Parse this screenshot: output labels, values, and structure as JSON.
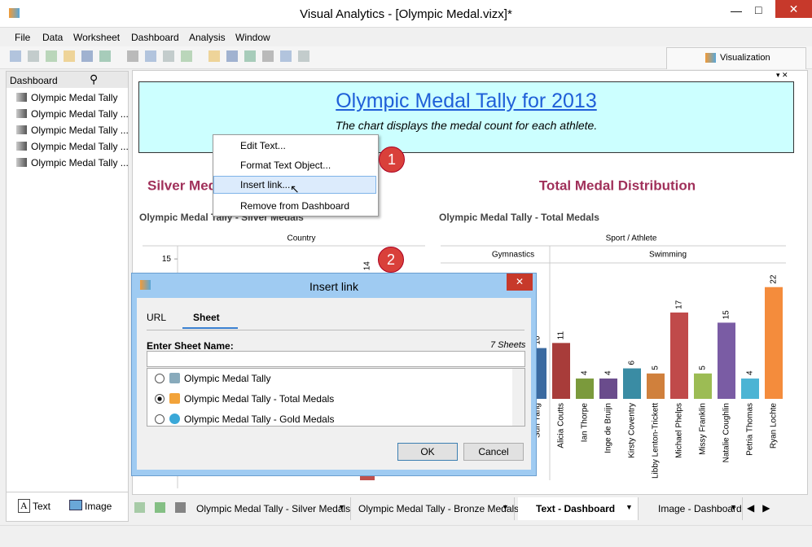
{
  "window": {
    "title": "Visual Analytics - [Olympic Medal.vizx]*"
  },
  "menu": [
    "File",
    "Data",
    "Worksheet",
    "Dashboard",
    "Analysis",
    "Window"
  ],
  "toolbar": {
    "tab": "Visualization"
  },
  "sidebar": {
    "title": "Dashboard",
    "items": [
      "Olympic Medal Tally",
      "Olympic Medal Tally ...",
      "Olympic Medal Tally ...",
      "Olympic Medal Tally ...",
      "Olympic Medal Tally ..."
    ],
    "objects": [
      "Text",
      "Image"
    ]
  },
  "dashboard": {
    "title": "Olympic Medal Tally for 2013",
    "subtitle": "The chart displays the medal count for each athlete."
  },
  "chart_data": [
    {
      "type": "bar",
      "title": "Silver Medal Distribution",
      "subtitle": "Olympic Medal Tally - Silver Medals",
      "x_header": "Country",
      "categories": [
        null
      ],
      "values": [
        14
      ],
      "color": "#c0504d",
      "ylim": [
        0,
        16
      ],
      "yticks": [
        15
      ]
    },
    {
      "type": "bar",
      "title": "Total Medal Distribution",
      "subtitle": "Olympic Medal Tally - Total Medals",
      "x_header": "Sport / Athlete",
      "groups": [
        "Gymnastics",
        "Swimming"
      ],
      "categories": [
        "Sun Yang",
        "Alicia Coutts",
        "Ian Thorpe",
        "Inge de Bruijn",
        "Kirsty Coventry",
        "Libby Lenton-Trickett",
        "Michael Phelps",
        "Missy Franklin",
        "Natalie Coughlin",
        "Petria Thomas",
        "Ryan Lochte"
      ],
      "values": [
        10,
        11,
        4,
        4,
        6,
        5,
        17,
        5,
        15,
        4,
        22
      ],
      "colors": [
        "#3b6aa0",
        "#a83c3a",
        "#7b9a3c",
        "#6a4c8c",
        "#3a8ca4",
        "#d0803c",
        "#c04a4a",
        "#9cbc54",
        "#7a5ca4",
        "#4cb4d4",
        "#f48c3c"
      ],
      "ylim": [
        0,
        25
      ]
    }
  ],
  "context_menu": {
    "items": [
      "Edit Text...",
      "Format Text Object...",
      "Insert link...",
      "Remove from Dashboard"
    ]
  },
  "callouts": [
    "1",
    "2"
  ],
  "dialog": {
    "title": "Insert link",
    "tabs": [
      "URL",
      "Sheet"
    ],
    "label": "Enter Sheet Name:",
    "count": "7 Sheets",
    "options": [
      "Olympic Medal Tally",
      "Olympic Medal Tally - Total Medals",
      "Olympic Medal Tally - Gold Medals"
    ],
    "buttons": [
      "OK",
      "Cancel"
    ]
  },
  "tabs": [
    "Olympic Medal Tally - Silver Medals",
    "Olympic Medal Tally - Bronze Medals",
    "Text - Dashboard",
    "Image - Dashboard"
  ]
}
